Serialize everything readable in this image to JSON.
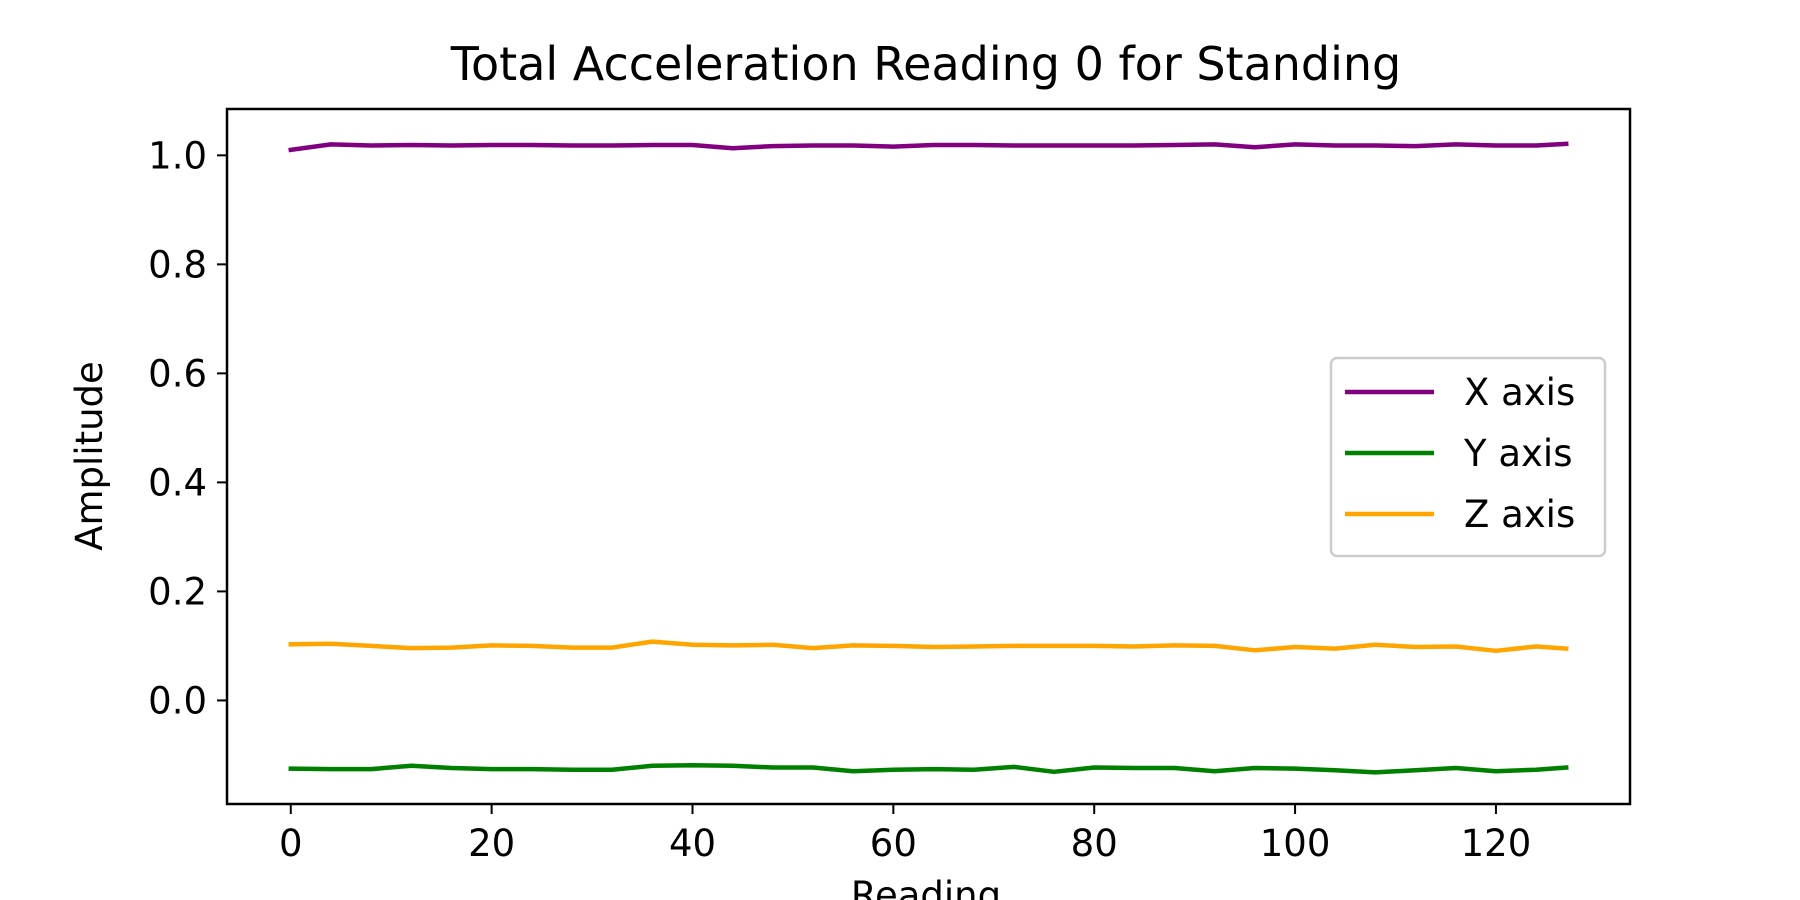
{
  "chart_data": {
    "type": "line",
    "title": "Total Acceleration Reading 0 for Standing",
    "xlabel": "Reading",
    "ylabel": "Amplitude",
    "xlim": [
      -6.35,
      133.35
    ],
    "ylim": [
      -0.19,
      1.085
    ],
    "xticks": [
      0,
      20,
      40,
      60,
      80,
      100,
      120
    ],
    "yticks": [
      0.0,
      0.2,
      0.4,
      0.6,
      0.8,
      1.0
    ],
    "xtick_labels": [
      "0",
      "20",
      "40",
      "60",
      "80",
      "100",
      "120"
    ],
    "ytick_labels": [
      "0.0",
      "0.2",
      "0.4",
      "0.6",
      "0.8",
      "1.0"
    ],
    "grid": false,
    "legend_position": "center-right",
    "x": [
      0,
      4,
      8,
      12,
      16,
      20,
      24,
      28,
      32,
      36,
      40,
      44,
      48,
      52,
      56,
      60,
      64,
      68,
      72,
      76,
      80,
      84,
      88,
      92,
      96,
      100,
      104,
      108,
      112,
      116,
      120,
      124,
      127
    ],
    "series": [
      {
        "name": "X axis",
        "color": "#800080",
        "values": [
          1.01,
          1.02,
          1.018,
          1.019,
          1.018,
          1.019,
          1.019,
          1.018,
          1.018,
          1.019,
          1.019,
          1.013,
          1.017,
          1.018,
          1.018,
          1.016,
          1.019,
          1.019,
          1.018,
          1.018,
          1.018,
          1.018,
          1.019,
          1.02,
          1.015,
          1.02,
          1.018,
          1.018,
          1.017,
          1.02,
          1.018,
          1.018,
          1.021
        ]
      },
      {
        "name": "Y axis",
        "color": "#008000",
        "values": [
          -0.125,
          -0.126,
          -0.126,
          -0.12,
          -0.124,
          -0.126,
          -0.126,
          -0.127,
          -0.127,
          -0.12,
          -0.119,
          -0.12,
          -0.123,
          -0.123,
          -0.13,
          -0.127,
          -0.126,
          -0.127,
          -0.122,
          -0.131,
          -0.123,
          -0.124,
          -0.124,
          -0.13,
          -0.124,
          -0.125,
          -0.128,
          -0.132,
          -0.128,
          -0.124,
          -0.13,
          -0.127,
          -0.123
        ]
      },
      {
        "name": "Z axis",
        "color": "#ffa500",
        "values": [
          0.103,
          0.104,
          0.1,
          0.096,
          0.097,
          0.101,
          0.1,
          0.097,
          0.097,
          0.108,
          0.102,
          0.101,
          0.102,
          0.096,
          0.101,
          0.1,
          0.098,
          0.099,
          0.1,
          0.1,
          0.1,
          0.099,
          0.101,
          0.1,
          0.092,
          0.098,
          0.095,
          0.102,
          0.098,
          0.099,
          0.091,
          0.099,
          0.095
        ]
      }
    ]
  }
}
